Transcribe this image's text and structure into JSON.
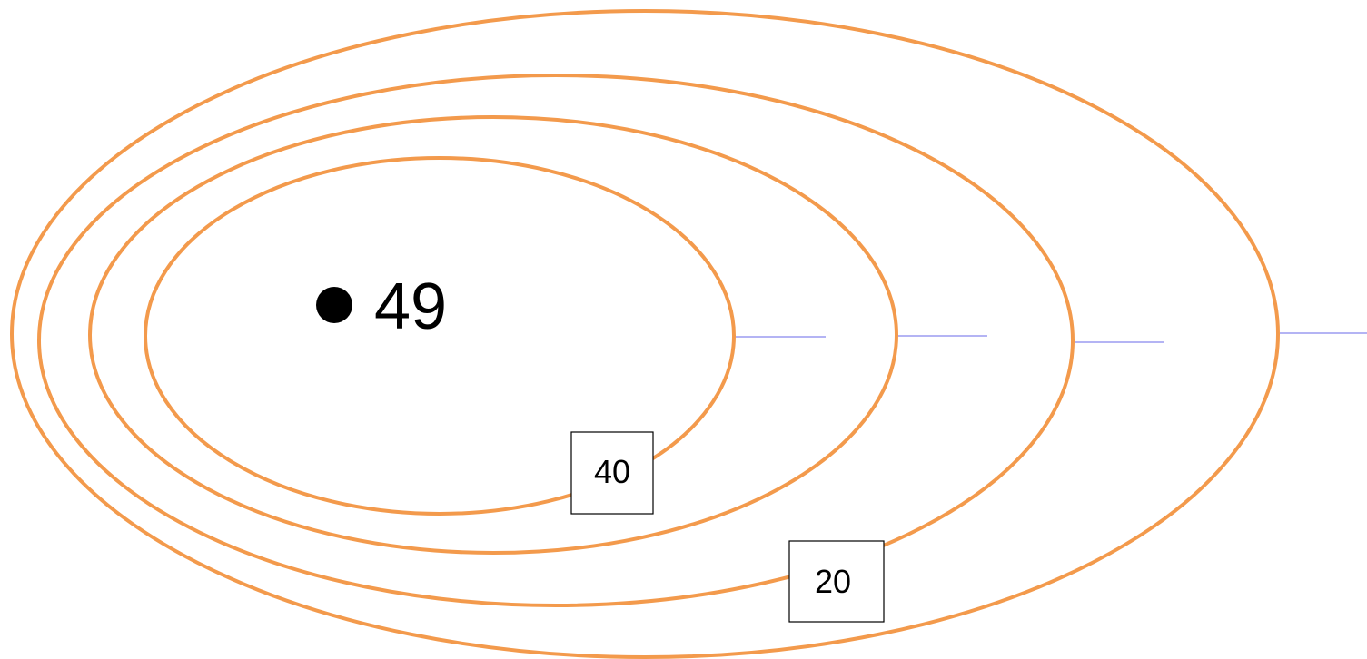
{
  "diagram": {
    "center_label": "49",
    "box_labels": [
      "40",
      "20"
    ],
    "colors": {
      "ring": "#F39A4C",
      "connector": "#9B9BF0",
      "text": "#000000",
      "box_border": "#000000",
      "background": "#FFFFFF"
    },
    "ring_count": 4
  }
}
